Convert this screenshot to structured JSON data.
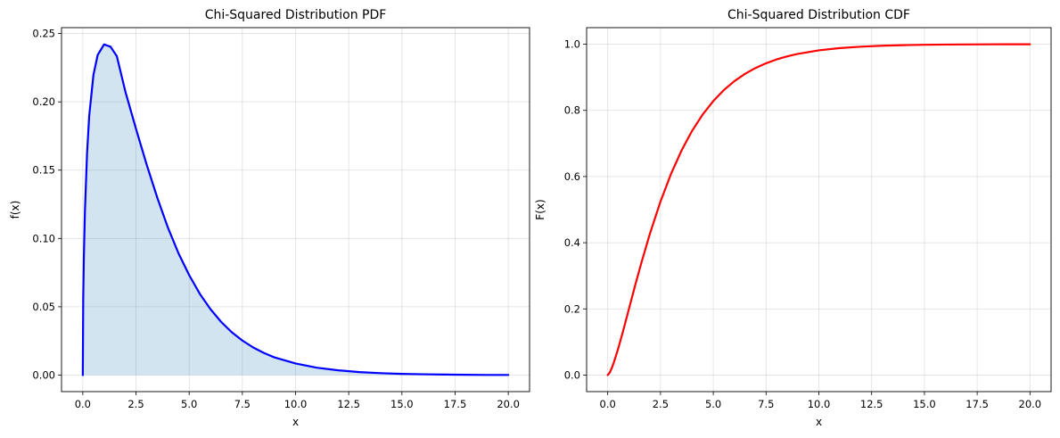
{
  "chart_data": [
    {
      "type": "area",
      "title": "Chi-Squared Distribution PDF",
      "xlabel": "x",
      "ylabel": "f(x)",
      "xlim": [
        -1.0,
        21.0
      ],
      "ylim": [
        -0.0121,
        0.2543
      ],
      "xticks": [
        0,
        2.5,
        5,
        7.5,
        10,
        12.5,
        15,
        17.5,
        20
      ],
      "xtick_labels": [
        "0.0",
        "2.5",
        "5.0",
        "7.5",
        "10.0",
        "12.5",
        "15.0",
        "17.5",
        "20.0"
      ],
      "yticks": [
        0,
        0.05,
        0.1,
        0.15,
        0.2,
        0.25
      ],
      "ytick_labels": [
        "0.00",
        "0.05",
        "0.10",
        "0.15",
        "0.20",
        "0.25"
      ],
      "grid": true,
      "line_color": "#0000ff",
      "fill_color": "#1f77b4",
      "fill_opacity": 0.2,
      "series": [
        {
          "x": [
            0,
            0.02,
            0.05,
            0.1,
            0.2,
            0.3,
            0.5,
            0.7,
            1.0,
            1.3,
            1.6,
            2.0,
            2.5,
            3.0,
            3.5,
            4.0,
            4.5,
            5.0,
            5.5,
            6.0,
            6.5,
            7.0,
            7.5,
            8.0,
            8.5,
            9.0,
            10.0,
            11.0,
            12.0,
            13.0,
            14.0,
            15.0,
            16.0,
            17.0,
            18.0,
            19.0,
            20.0
          ],
          "y": [
            0,
            0.0558,
            0.0861,
            0.1197,
            0.1622,
            0.1894,
            0.2197,
            0.2343,
            0.242,
            0.2404,
            0.2334,
            0.2076,
            0.1803,
            0.1542,
            0.1299,
            0.108,
            0.0891,
            0.0732,
            0.0595,
            0.0483,
            0.039,
            0.0314,
            0.0253,
            0.0203,
            0.0163,
            0.013,
            0.0085,
            0.0054,
            0.0035,
            0.0022,
            0.0014,
            0.0009,
            0.0006,
            0.0004,
            0.0002,
            0.0001,
            0.0001
          ]
        }
      ]
    },
    {
      "type": "line",
      "title": "Chi-Squared Distribution CDF",
      "xlabel": "x",
      "ylabel": "F(x)",
      "xlim": [
        -1.0,
        21.0
      ],
      "ylim": [
        -0.05,
        1.05
      ],
      "xticks": [
        0,
        2.5,
        5,
        7.5,
        10,
        12.5,
        15,
        17.5,
        20
      ],
      "xtick_labels": [
        "0.0",
        "2.5",
        "5.0",
        "7.5",
        "10.0",
        "12.5",
        "15.0",
        "17.5",
        "20.0"
      ],
      "yticks": [
        0,
        0.2,
        0.4,
        0.6,
        0.8,
        1.0
      ],
      "ytick_labels": [
        "0.0",
        "0.2",
        "0.4",
        "0.6",
        "0.8",
        "1.0"
      ],
      "grid": true,
      "line_color": "#ff0000",
      "series": [
        {
          "x": [
            0,
            0.1,
            0.2,
            0.3,
            0.5,
            0.7,
            1.0,
            1.3,
            1.6,
            2.0,
            2.5,
            3.0,
            3.5,
            4.0,
            4.5,
            5.0,
            5.5,
            6.0,
            6.5,
            7.0,
            7.5,
            8.0,
            8.5,
            9.0,
            10.0,
            11.0,
            12.0,
            13.0,
            14.0,
            15.0,
            16.0,
            17.0,
            18.0,
            19.0,
            20.0
          ],
          "y": [
            0,
            0.0082,
            0.0224,
            0.04,
            0.0811,
            0.1265,
            0.1987,
            0.2714,
            0.3406,
            0.4276,
            0.5247,
            0.6084,
            0.6792,
            0.7385,
            0.7878,
            0.8282,
            0.8614,
            0.8884,
            0.9103,
            0.9281,
            0.9424,
            0.954,
            0.9633,
            0.9707,
            0.9814,
            0.9883,
            0.9926,
            0.9954,
            0.9971,
            0.9982,
            0.9989,
            0.9993,
            0.9996,
            0.9997,
            0.9998
          ]
        }
      ]
    }
  ]
}
